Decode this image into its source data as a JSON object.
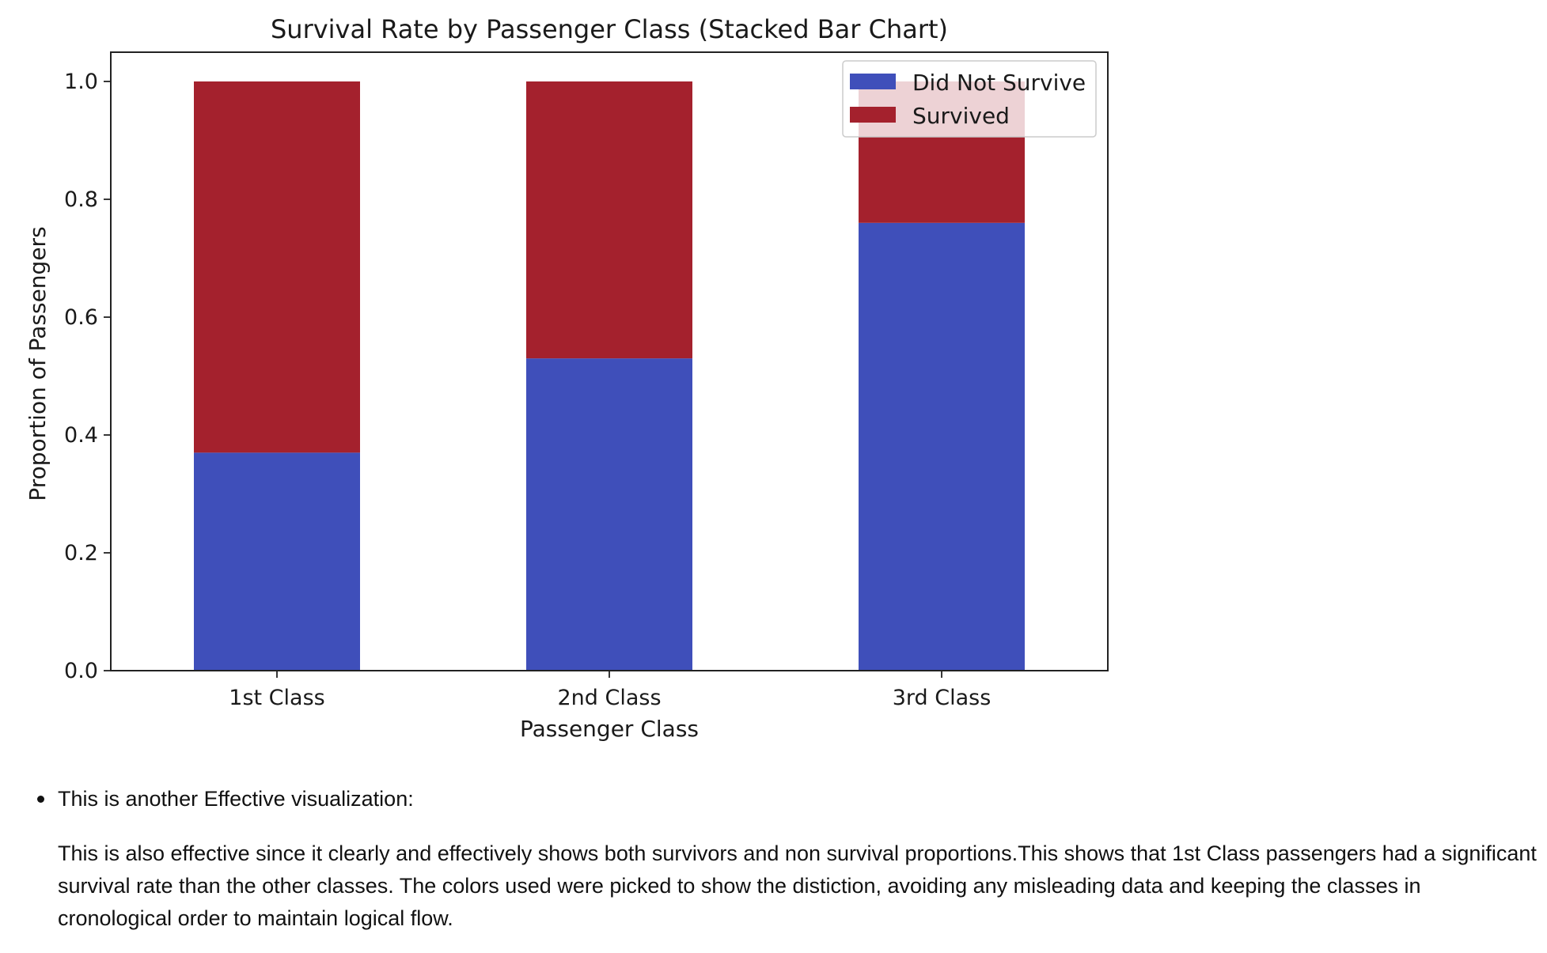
{
  "chart_data": {
    "type": "bar",
    "stacked": true,
    "title": "Survival Rate by Passenger Class (Stacked Bar Chart)",
    "xlabel": "Passenger Class",
    "ylabel": "Proportion of Passengers",
    "categories": [
      "1st Class",
      "2nd Class",
      "3rd Class"
    ],
    "series": [
      {
        "name": "Did Not Survive",
        "color": "#3f4fba",
        "values": [
          0.37,
          0.53,
          0.76
        ]
      },
      {
        "name": "Survived",
        "color": "#a4212d",
        "values": [
          0.63,
          0.47,
          0.24
        ]
      }
    ],
    "ylim": [
      0,
      1.0
    ],
    "yticks": [
      0.0,
      0.2,
      0.4,
      0.6,
      0.8,
      1.0
    ],
    "ytick_labels": [
      "0.0",
      "0.2",
      "0.4",
      "0.6",
      "0.8",
      "1.0"
    ],
    "grid": false,
    "legend_position": "top-right"
  },
  "notes": {
    "bullet": "This is another Effective visualization:",
    "paragraph": "This is also effective since it clearly and effectively shows both survivors and non survival proportions.This shows that 1st Class passengers had a significant survival rate than the other classes. The colors used were picked to show the distiction, avoiding any misleading data and keeping the classes in cronological order to maintain logical flow."
  }
}
